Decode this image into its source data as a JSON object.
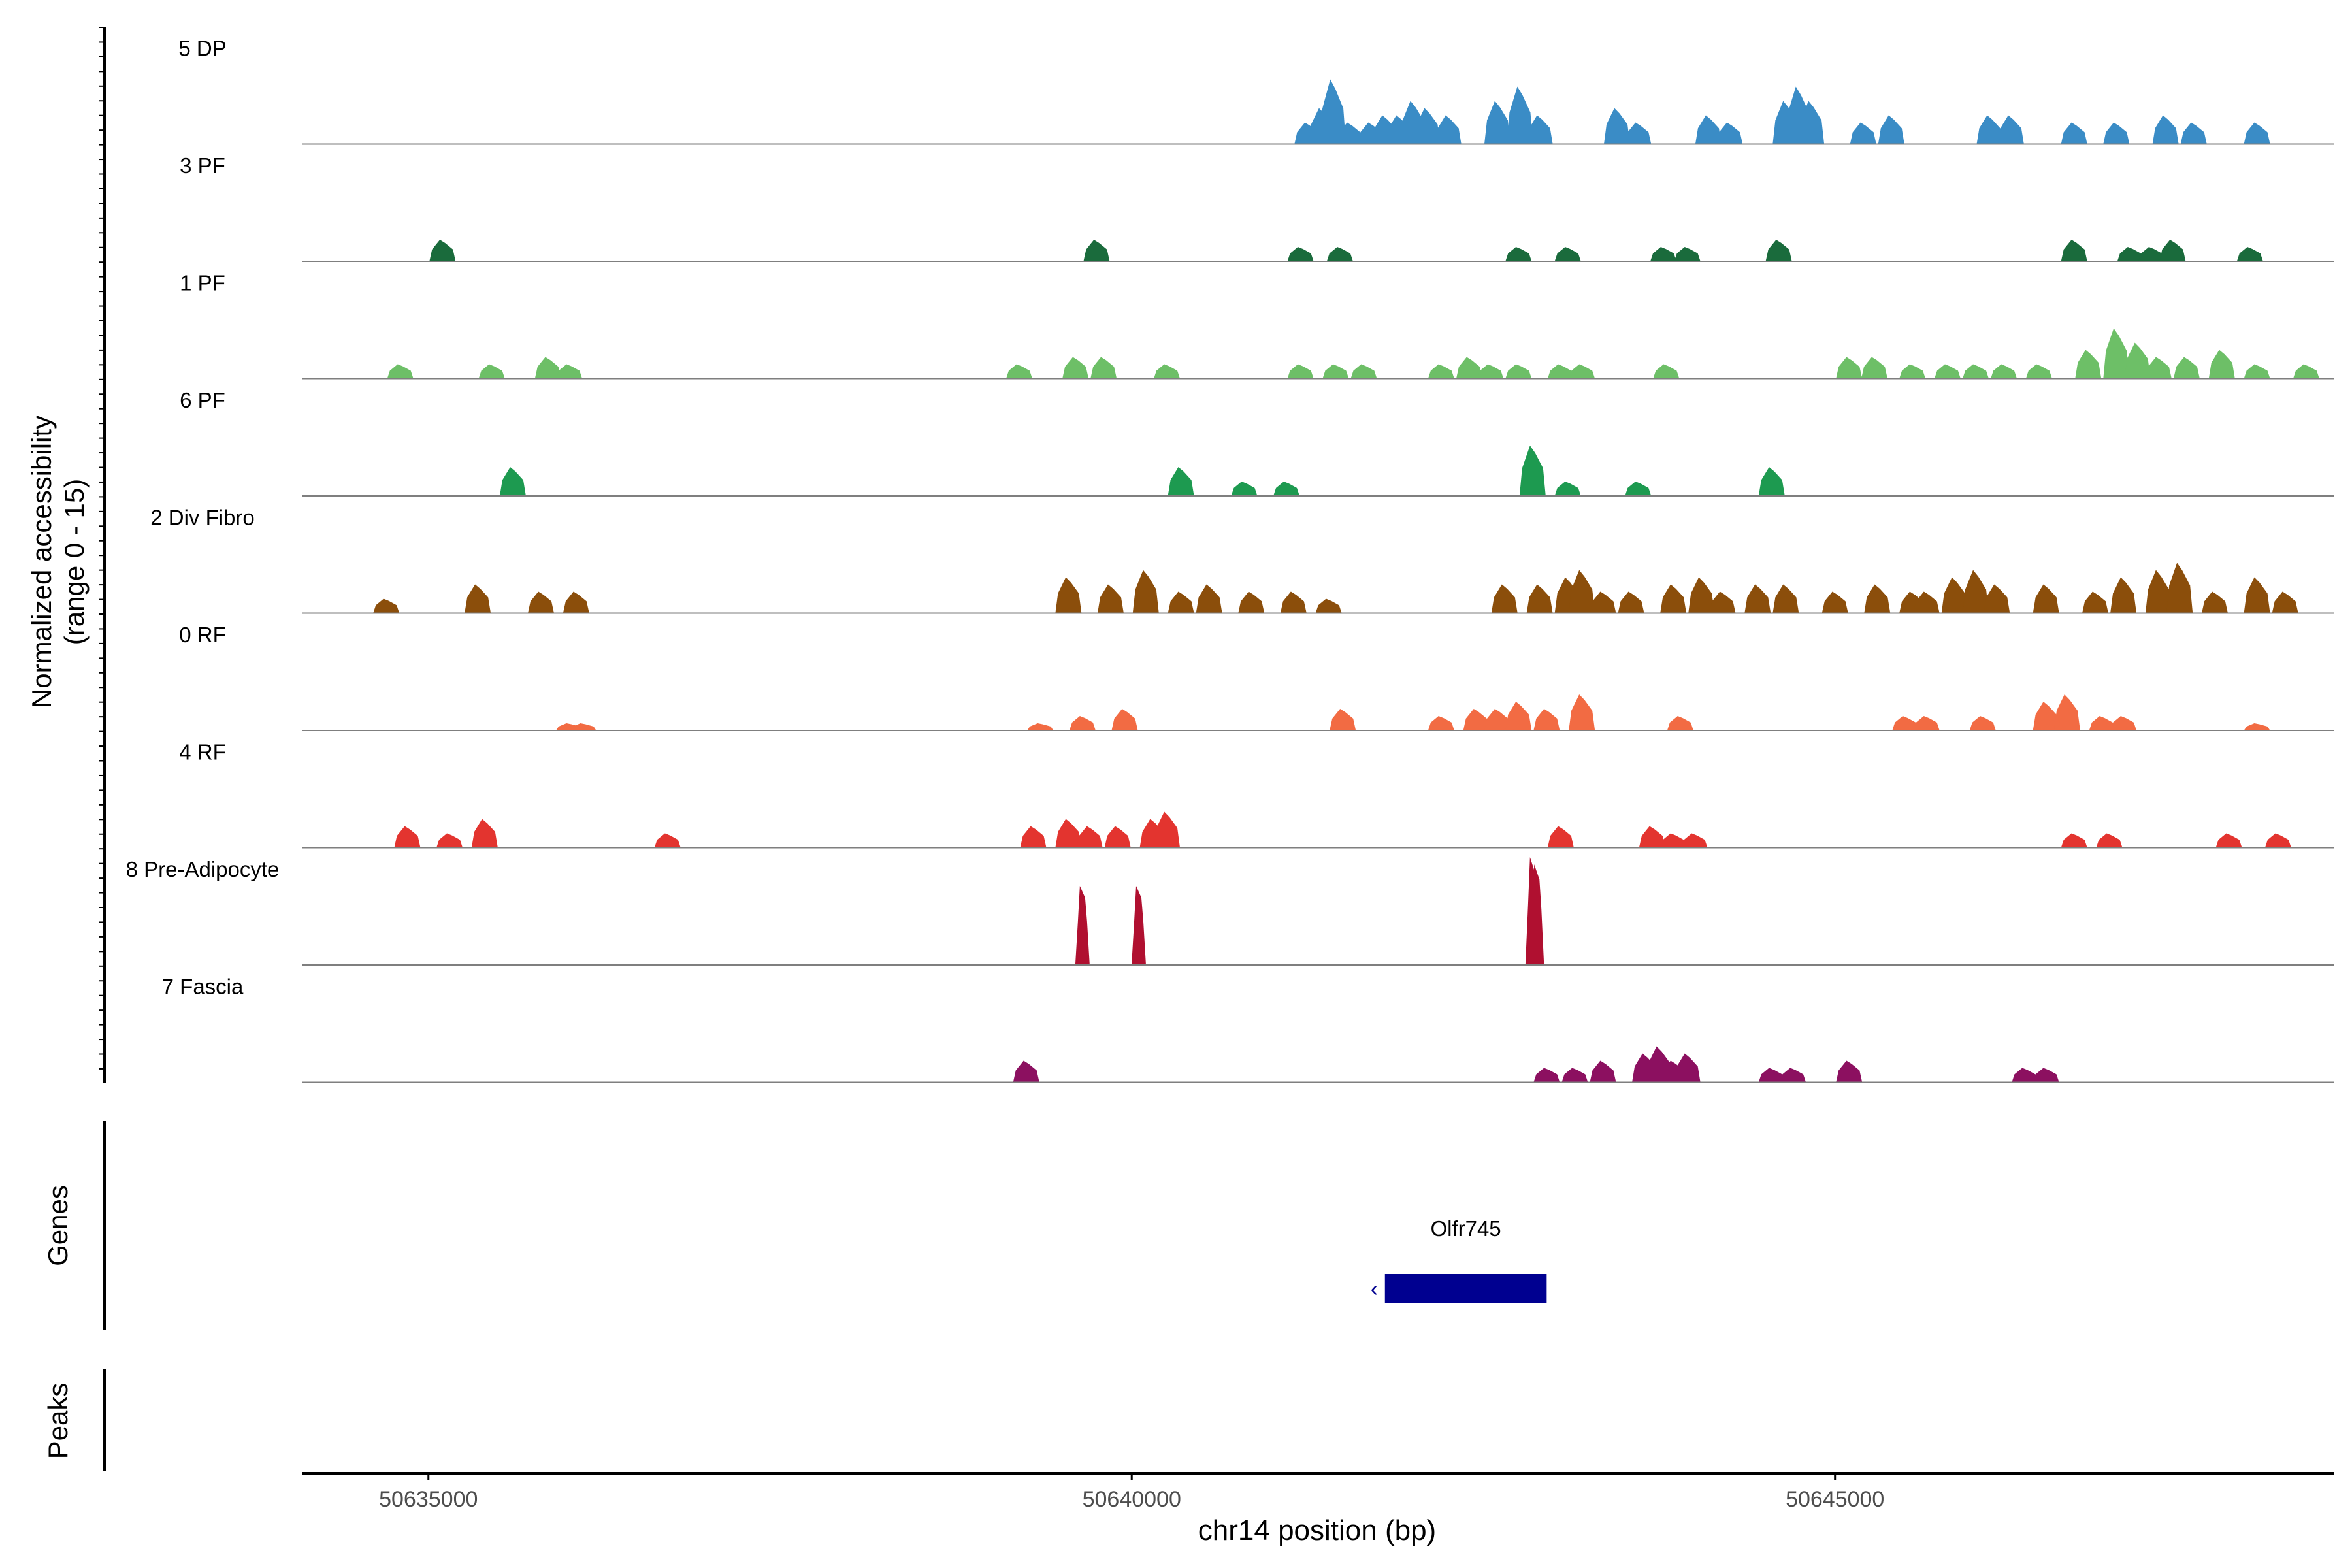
{
  "chart_data": {
    "type": "area",
    "ylabel_line1": "Normalized accessibility",
    "ylabel_line2": "(range 0 - 15)",
    "xlabel": "chr14 position (bp)",
    "xlim": [
      50634100,
      50648550
    ],
    "ylim": [
      0,
      15
    ],
    "x_ticks": [
      {
        "value": 50635000,
        "label": "50635000"
      },
      {
        "value": 50640000,
        "label": "50640000"
      },
      {
        "value": 50645000,
        "label": "50645000"
      }
    ],
    "series": [
      {
        "name": "5 DP",
        "color": "#3a8cc6",
        "peaks": [
          [
            50641250,
            3
          ],
          [
            50641350,
            5
          ],
          [
            50641430,
            9
          ],
          [
            50641550,
            3
          ],
          [
            50641700,
            3
          ],
          [
            50641800,
            4
          ],
          [
            50641900,
            4
          ],
          [
            50642000,
            6
          ],
          [
            50642100,
            5
          ],
          [
            50642250,
            4
          ],
          [
            50642600,
            6
          ],
          [
            50642760,
            8
          ],
          [
            50642900,
            4
          ],
          [
            50643450,
            5
          ],
          [
            50643600,
            3
          ],
          [
            50644100,
            4
          ],
          [
            50644250,
            3
          ],
          [
            50644650,
            6
          ],
          [
            50644740,
            8
          ],
          [
            50644830,
            6
          ],
          [
            50645200,
            3
          ],
          [
            50645400,
            4
          ],
          [
            50646100,
            4
          ],
          [
            50646250,
            4
          ],
          [
            50646700,
            3
          ],
          [
            50647000,
            3
          ],
          [
            50647350,
            4
          ],
          [
            50647550,
            3
          ],
          [
            50648000,
            3
          ]
        ]
      },
      {
        "name": "3 PF",
        "color": "#1a6b3c",
        "peaks": [
          [
            50635100,
            3
          ],
          [
            50639750,
            3
          ],
          [
            50641200,
            2
          ],
          [
            50641480,
            2
          ],
          [
            50642750,
            2
          ],
          [
            50643100,
            2
          ],
          [
            50643780,
            2
          ],
          [
            50643950,
            2
          ],
          [
            50644600,
            3
          ],
          [
            50646700,
            3
          ],
          [
            50647100,
            2
          ],
          [
            50647250,
            2
          ],
          [
            50647400,
            3
          ],
          [
            50647950,
            2
          ]
        ]
      },
      {
        "name": "1 PF",
        "color": "#6dbf67",
        "peaks": [
          [
            50634800,
            2
          ],
          [
            50635450,
            2
          ],
          [
            50635850,
            3
          ],
          [
            50636000,
            2
          ],
          [
            50639200,
            2
          ],
          [
            50639600,
            3
          ],
          [
            50639800,
            3
          ],
          [
            50640250,
            2
          ],
          [
            50641200,
            2
          ],
          [
            50641450,
            2
          ],
          [
            50641650,
            2
          ],
          [
            50642200,
            2
          ],
          [
            50642400,
            3
          ],
          [
            50642550,
            2
          ],
          [
            50642750,
            2
          ],
          [
            50643050,
            2
          ],
          [
            50643200,
            2
          ],
          [
            50643800,
            2
          ],
          [
            50645100,
            3
          ],
          [
            50645280,
            3
          ],
          [
            50645550,
            2
          ],
          [
            50645800,
            2
          ],
          [
            50646000,
            2
          ],
          [
            50646200,
            2
          ],
          [
            50646450,
            2
          ],
          [
            50646800,
            4
          ],
          [
            50647000,
            7
          ],
          [
            50647150,
            5
          ],
          [
            50647300,
            3
          ],
          [
            50647500,
            3
          ],
          [
            50647750,
            4
          ],
          [
            50648000,
            2
          ],
          [
            50648350,
            2
          ]
        ]
      },
      {
        "name": "6 PF",
        "color": "#1d9a50",
        "peaks": [
          [
            50635600,
            4
          ],
          [
            50640350,
            4
          ],
          [
            50640800,
            2
          ],
          [
            50641100,
            2
          ],
          [
            50642850,
            7
          ],
          [
            50643100,
            2
          ],
          [
            50643600,
            2
          ],
          [
            50644550,
            4
          ]
        ]
      },
      {
        "name": "2 Div Fibro",
        "color": "#8b4e0b",
        "peaks": [
          [
            50634700,
            2
          ],
          [
            50635350,
            4
          ],
          [
            50635800,
            3
          ],
          [
            50636050,
            3
          ],
          [
            50639550,
            5
          ],
          [
            50639850,
            4
          ],
          [
            50640100,
            6
          ],
          [
            50640350,
            3
          ],
          [
            50640550,
            4
          ],
          [
            50640850,
            3
          ],
          [
            50641150,
            3
          ],
          [
            50641400,
            2
          ],
          [
            50642650,
            4
          ],
          [
            50642900,
            4
          ],
          [
            50643100,
            5
          ],
          [
            50643200,
            6
          ],
          [
            50643350,
            3
          ],
          [
            50643550,
            3
          ],
          [
            50643850,
            4
          ],
          [
            50644050,
            5
          ],
          [
            50644200,
            3
          ],
          [
            50644450,
            4
          ],
          [
            50644650,
            4
          ],
          [
            50645000,
            3
          ],
          [
            50645300,
            4
          ],
          [
            50645550,
            3
          ],
          [
            50645650,
            3
          ],
          [
            50645850,
            5
          ],
          [
            50646000,
            6
          ],
          [
            50646150,
            4
          ],
          [
            50646500,
            4
          ],
          [
            50646850,
            3
          ],
          [
            50647050,
            5
          ],
          [
            50647300,
            6
          ],
          [
            50647450,
            7
          ],
          [
            50647700,
            3
          ],
          [
            50648000,
            5
          ],
          [
            50648200,
            3
          ]
        ]
      },
      {
        "name": "0 RF",
        "color": "#f26b43",
        "peaks": [
          [
            50636000,
            1
          ],
          [
            50636100,
            1
          ],
          [
            50639350,
            1
          ],
          [
            50639650,
            2
          ],
          [
            50639950,
            3
          ],
          [
            50641500,
            3
          ],
          [
            50642200,
            2
          ],
          [
            50642450,
            3
          ],
          [
            50642600,
            3
          ],
          [
            50642750,
            4
          ],
          [
            50642950,
            3
          ],
          [
            50643200,
            5
          ],
          [
            50643900,
            2
          ],
          [
            50645500,
            2
          ],
          [
            50645650,
            2
          ],
          [
            50646050,
            2
          ],
          [
            50646500,
            4
          ],
          [
            50646650,
            5
          ],
          [
            50646900,
            2
          ],
          [
            50647050,
            2
          ],
          [
            50648000,
            1
          ]
        ]
      },
      {
        "name": "4 RF",
        "color": "#e3342f",
        "peaks": [
          [
            50634850,
            3
          ],
          [
            50635150,
            2
          ],
          [
            50635400,
            4
          ],
          [
            50636700,
            2
          ],
          [
            50639300,
            3
          ],
          [
            50639550,
            4
          ],
          [
            50639700,
            3
          ],
          [
            50639900,
            3
          ],
          [
            50640150,
            4
          ],
          [
            50640250,
            5
          ],
          [
            50643050,
            3
          ],
          [
            50643700,
            3
          ],
          [
            50643850,
            2
          ],
          [
            50644000,
            2
          ],
          [
            50646700,
            2
          ],
          [
            50646950,
            2
          ],
          [
            50647800,
            2
          ],
          [
            50648150,
            2
          ]
        ]
      },
      {
        "name": "8 Pre-Adipocyte",
        "color": "#b01030",
        "peaks": [
          [
            50639650,
            11
          ],
          [
            50640050,
            11
          ],
          [
            50642850,
            15
          ],
          [
            50642880,
            14
          ]
        ]
      },
      {
        "name": "7 Fascia",
        "color": "#8c1060",
        "peaks": [
          [
            50639250,
            3
          ],
          [
            50642950,
            2
          ],
          [
            50643150,
            2
          ],
          [
            50643350,
            3
          ],
          [
            50643650,
            4
          ],
          [
            50643750,
            5
          ],
          [
            50643850,
            3
          ],
          [
            50643950,
            4
          ],
          [
            50644550,
            2
          ],
          [
            50644700,
            2
          ],
          [
            50645100,
            3
          ],
          [
            50646350,
            2
          ],
          [
            50646500,
            2
          ]
        ]
      }
    ],
    "genes": [
      {
        "name": "Olfr745",
        "start": 50641800,
        "end": 50642950,
        "strand": "-",
        "color": "#000090"
      }
    ],
    "panel_titles": {
      "genes": "Genes",
      "peaks": "Peaks"
    }
  }
}
